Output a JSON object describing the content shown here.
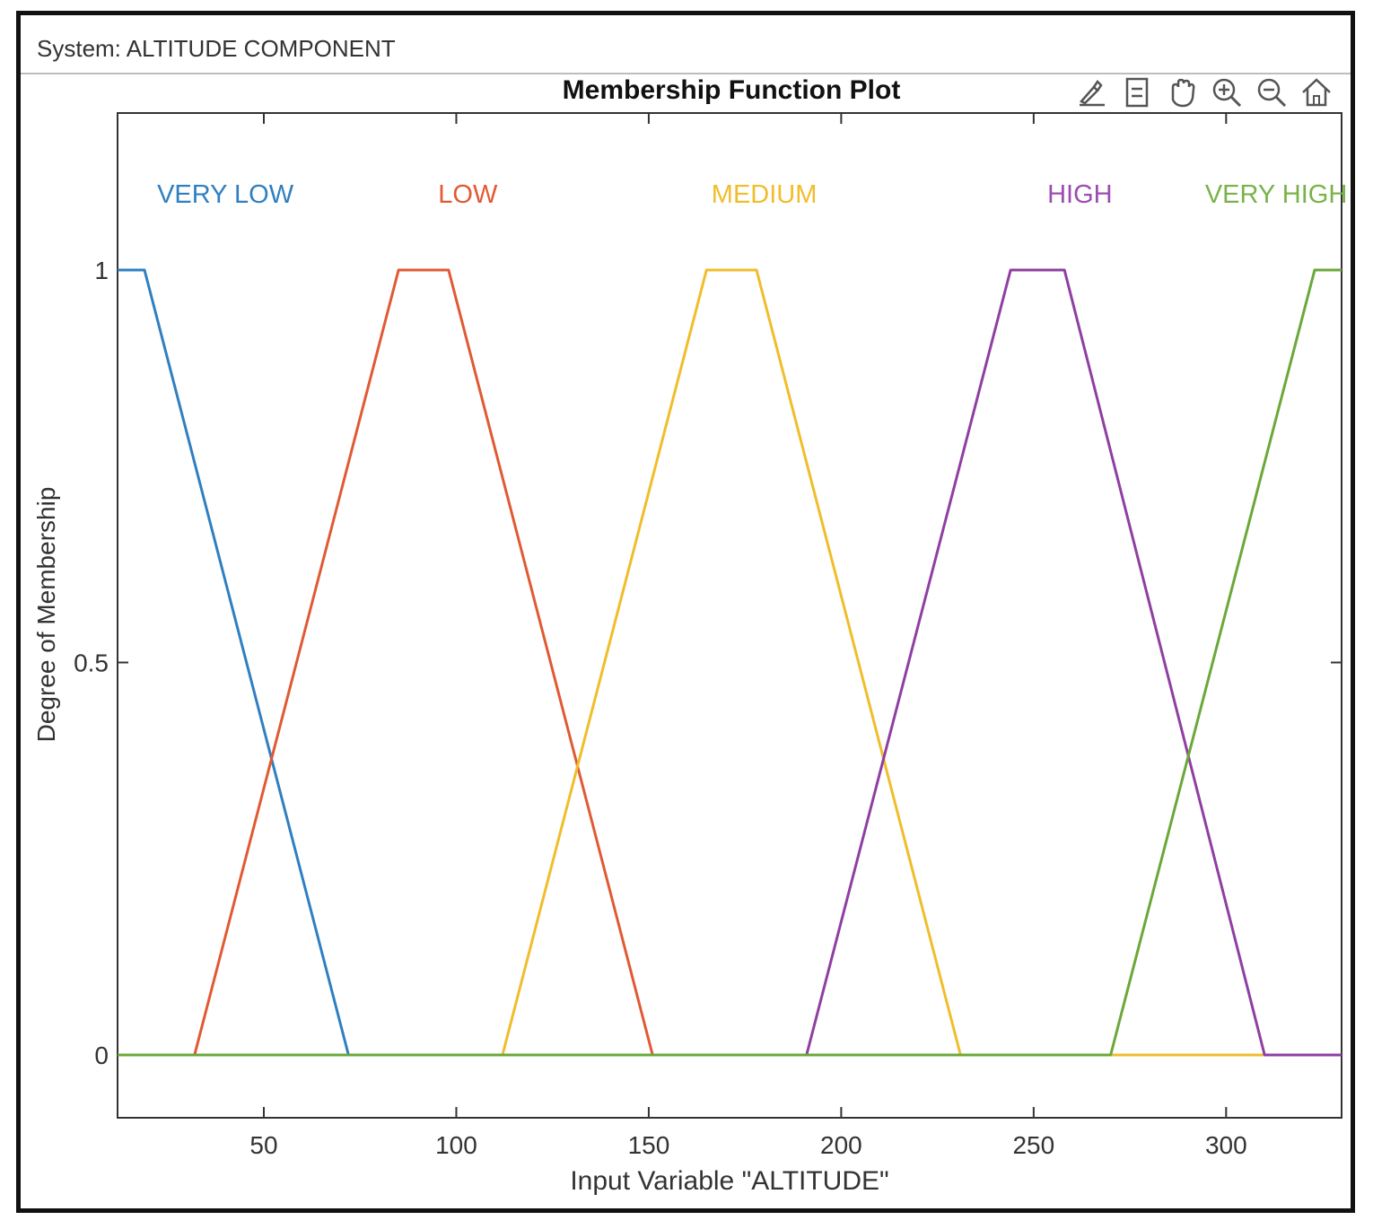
{
  "system": {
    "label": "System: ALTITUDE COMPONENT"
  },
  "toolbar": {
    "icons": [
      "brush-icon",
      "data-tip-icon",
      "pan-hand-icon",
      "zoom-in-icon",
      "zoom-out-icon",
      "home-icon"
    ]
  },
  "chart_data": {
    "type": "line",
    "title": "Membership Function Plot",
    "xlabel": "Input Variable \"ALTITUDE\"",
    "ylabel": "Degree of Membership",
    "xlim": [
      12,
      330
    ],
    "ylim": [
      -0.08,
      1.2
    ],
    "x_ticks": [
      50,
      100,
      150,
      200,
      250,
      300
    ],
    "y_ticks": [
      0,
      0.5,
      1
    ],
    "y_tick_labels": [
      "0",
      "0.5",
      "1"
    ],
    "grid": false,
    "series": [
      {
        "name": "VERY LOW",
        "color": "#2f7fc1",
        "x": [
          12,
          19,
          72,
          330
        ],
        "y": [
          1,
          1,
          0,
          0
        ]
      },
      {
        "name": "LOW",
        "color": "#e05a33",
        "x": [
          12,
          32,
          85,
          98,
          151,
          330
        ],
        "y": [
          0,
          0,
          1,
          1,
          0,
          0
        ]
      },
      {
        "name": "MEDIUM",
        "color": "#f0bd2c",
        "x": [
          12,
          112,
          165,
          178,
          231,
          330
        ],
        "y": [
          0,
          0,
          1,
          1,
          0,
          0
        ]
      },
      {
        "name": "HIGH",
        "color": "#8f3fa1",
        "x": [
          12,
          191,
          244,
          258,
          310,
          330
        ],
        "y": [
          0,
          0,
          1,
          1,
          0,
          0
        ]
      },
      {
        "name": "VERY HIGH",
        "color": "#6ba83a",
        "x": [
          12,
          270,
          323,
          330
        ],
        "y": [
          0,
          0,
          1,
          1
        ]
      }
    ],
    "annotations": [
      {
        "text": "VERY LOW",
        "x": 40,
        "color": "#2f7fc1"
      },
      {
        "text": "LOW",
        "x": 103,
        "color": "#e05a33"
      },
      {
        "text": "MEDIUM",
        "x": 180,
        "color": "#f0bd2c"
      },
      {
        "text": "HIGH",
        "x": 262,
        "color": "#9b4db0"
      },
      {
        "text": "VERY HIGH",
        "x": 313,
        "color": "#7bb24a"
      }
    ]
  }
}
